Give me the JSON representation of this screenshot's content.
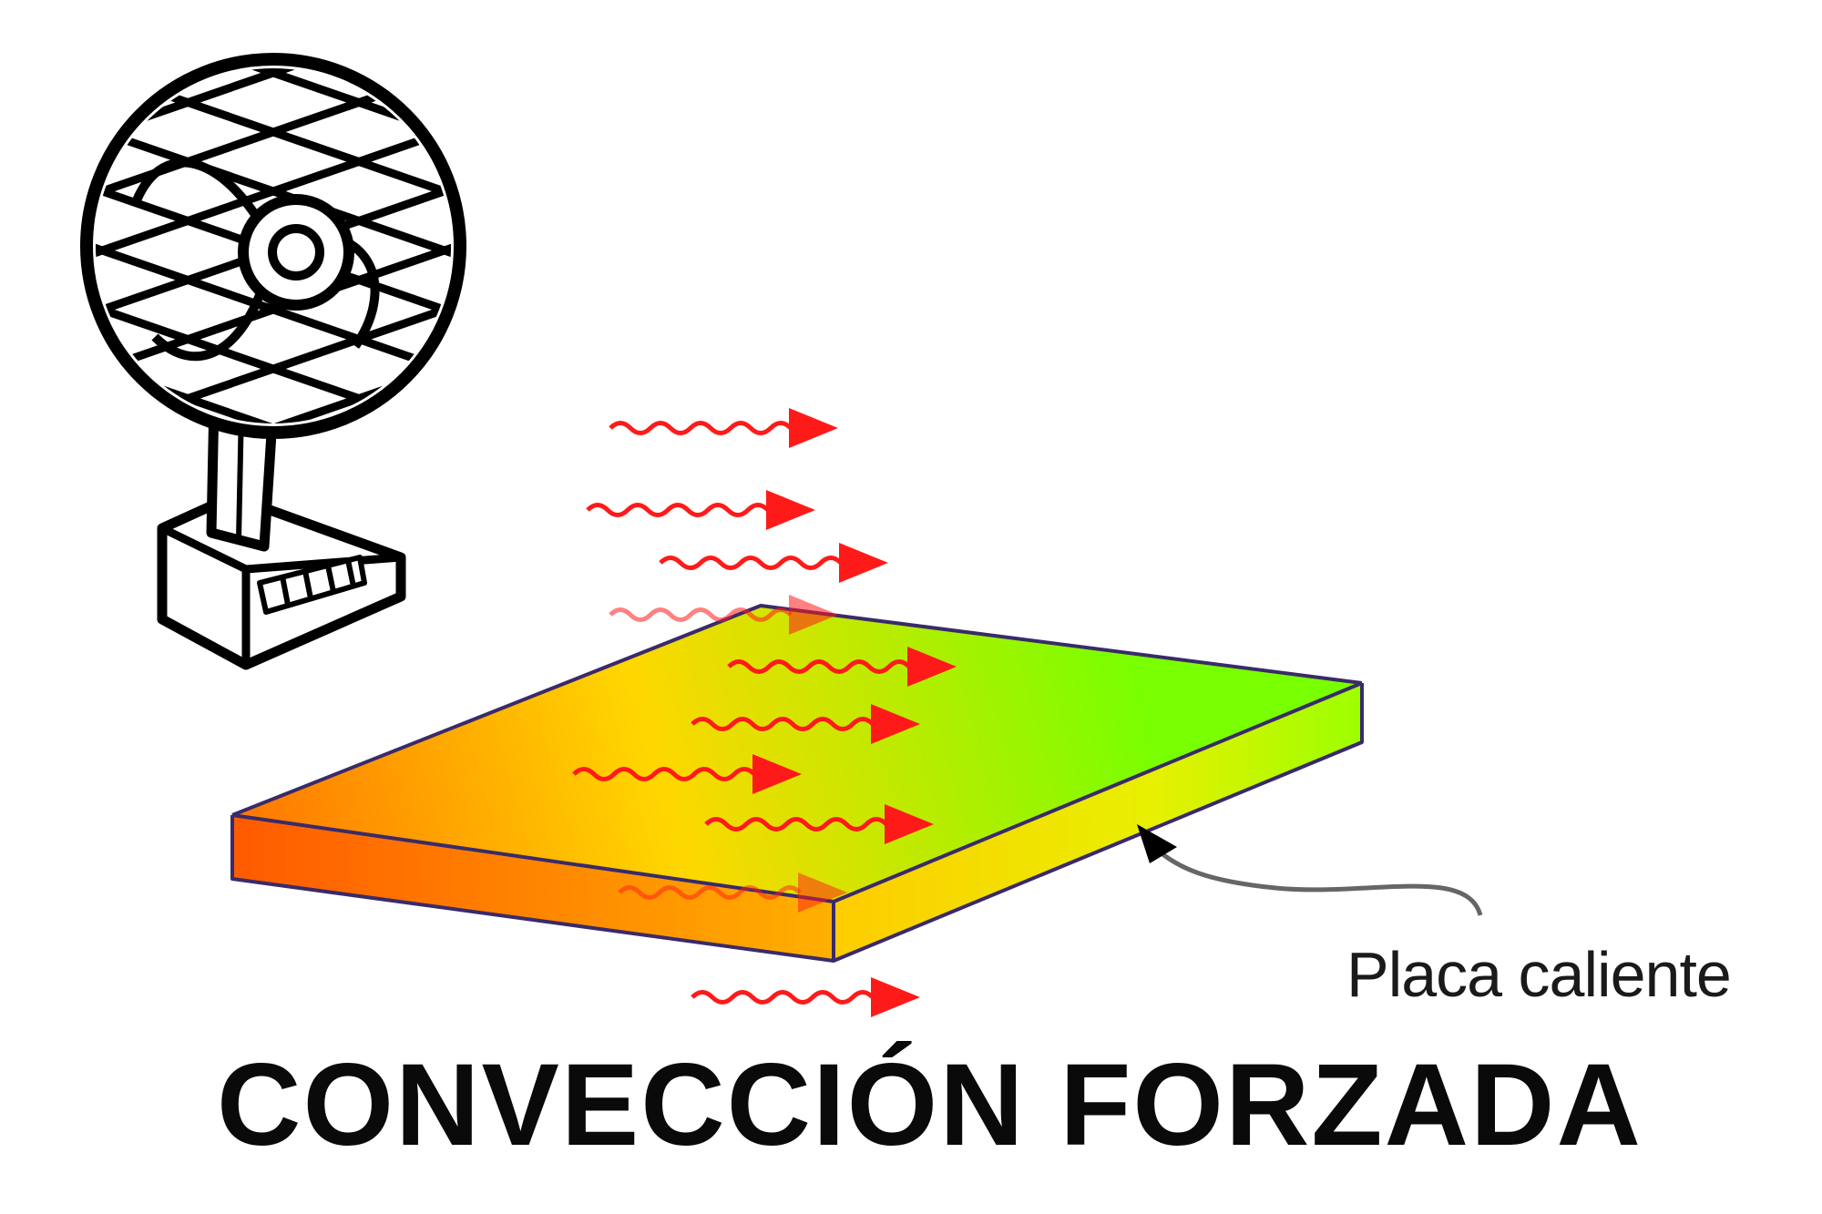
{
  "labels": {
    "plate": "Placa caliente",
    "title": "CONVECCIÓN FORZADA"
  },
  "colors": {
    "arrow": "#ff1a1a",
    "fan_stroke": "#000000",
    "plate_hot": "#ff6a00",
    "plate_warm": "#ffd400",
    "plate_cool": "#7dff00",
    "plate_edge": "#2a2aff"
  },
  "icons": {
    "fan": "desk-fan-icon",
    "airflow": "airflow-arrow-icon",
    "pointer": "curved-pointer-arrow"
  }
}
